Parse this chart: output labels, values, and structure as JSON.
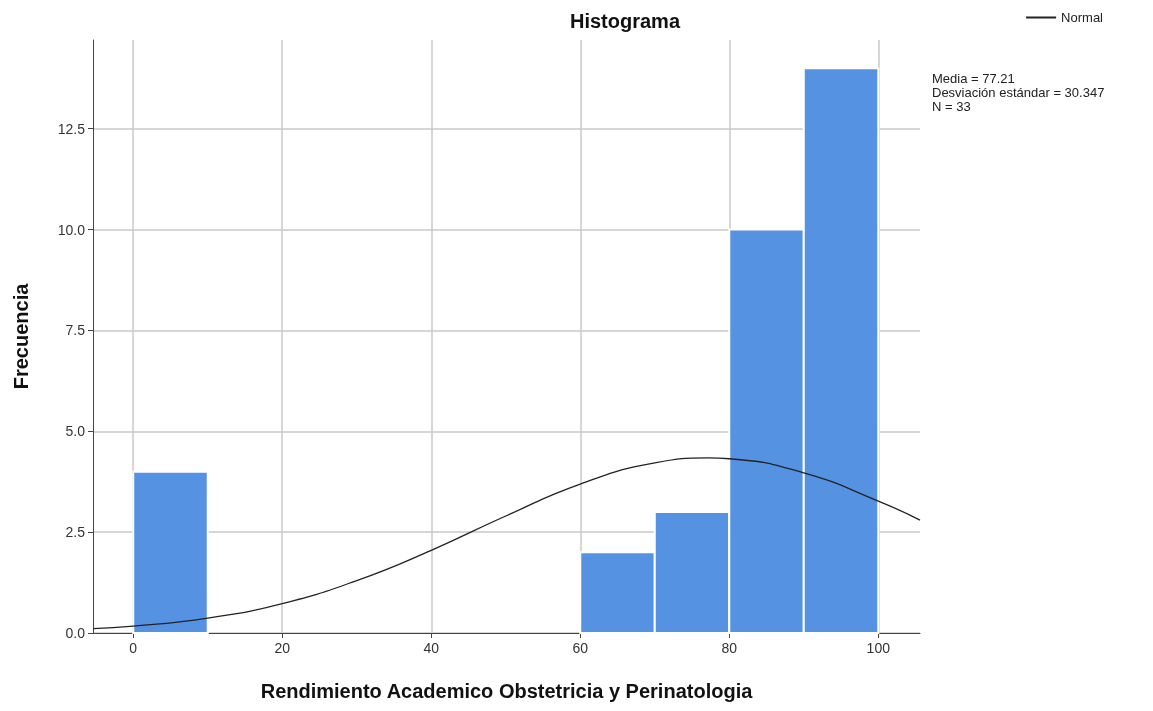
{
  "chart_data": {
    "type": "histogram",
    "title": "Histograma",
    "xlabel": "Rendimiento Academico Obstetricia y Perinatologia",
    "ylabel": "Frecuencia",
    "bins": [
      0,
      10,
      20,
      30,
      40,
      50,
      60,
      70,
      80,
      90,
      100
    ],
    "values": [
      4,
      0,
      0,
      0,
      0,
      0,
      2,
      3,
      10,
      14
    ],
    "color": "#5592e2",
    "series": [
      {
        "type": "line",
        "name": "Normal",
        "color": "#222222",
        "marker": "none",
        "x": [
          -5.4,
          0,
          10,
          20,
          30,
          40,
          50,
          60,
          70,
          77.21,
          80,
          90,
          100,
          105.6
        ],
        "values": [
          0.11,
          0.17,
          0.37,
          0.73,
          1.3,
          2.05,
          2.9,
          3.69,
          4.22,
          4.34,
          4.32,
          3.97,
          3.27,
          2.8
        ]
      }
    ],
    "xlim": [
      -5.4,
      105.6
    ],
    "xticks": [
      0,
      20,
      40,
      60,
      80,
      100
    ],
    "ylim": [
      0,
      14.7
    ],
    "yticks": [
      {
        "value": 0,
        "label": "0.0"
      },
      {
        "value": 2.5,
        "label": "2.5"
      },
      {
        "value": 5,
        "label": "5.0"
      },
      {
        "value": 7.5,
        "label": "7.5"
      },
      {
        "value": 10,
        "label": "10.0"
      },
      {
        "value": 12.5,
        "label": "12.5"
      }
    ],
    "grid": true,
    "legend": "top right",
    "annotations": [
      "Media = 77.21",
      "Desviación estándar = 30.347",
      "N = 33"
    ]
  }
}
